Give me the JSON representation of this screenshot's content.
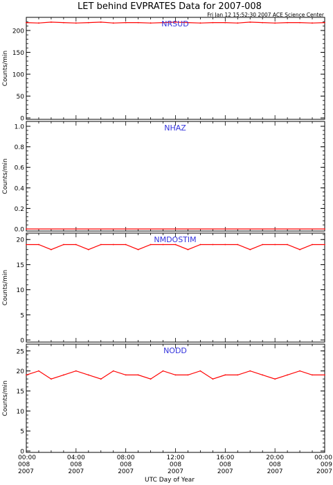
{
  "title": "LET behind EVPRATES Data for 2007-008",
  "timestamp": "Fri Jan 12 15:52:30 2007 ACE Science Center",
  "xlabel": "UTC Day of Year",
  "colors": {
    "trace": "#ff0000",
    "panel_label": "#3333dd",
    "axes": "#000000"
  },
  "x_ticks": [
    {
      "time": "00:00",
      "doy": "008",
      "year": "2007"
    },
    {
      "time": "04:00",
      "doy": "008",
      "year": "2007"
    },
    {
      "time": "08:00",
      "doy": "008",
      "year": "2007"
    },
    {
      "time": "12:00",
      "doy": "008",
      "year": "2007"
    },
    {
      "time": "16:00",
      "doy": "008",
      "year": "2007"
    },
    {
      "time": "20:00",
      "doy": "008",
      "year": "2007"
    },
    {
      "time": "00:00",
      "doy": "009",
      "year": "2007"
    }
  ],
  "chart_data": [
    {
      "type": "line",
      "label": "NRSUD",
      "ylabel": "Counts/min",
      "ylim": [
        0,
        230
      ],
      "yticks": [
        0,
        50,
        100,
        150,
        200
      ],
      "xlim": [
        "2007-008 00:00",
        "2007-009 00:00"
      ],
      "x_hours": [
        0,
        1,
        2,
        3,
        4,
        5,
        6,
        7,
        8,
        9,
        10,
        11,
        12,
        13,
        14,
        15,
        16,
        17,
        18,
        19,
        20,
        21,
        22,
        23,
        24
      ],
      "values": [
        218,
        217,
        219,
        218,
        217,
        218,
        219,
        217,
        218,
        218,
        217,
        218,
        219,
        218,
        217,
        218,
        218,
        217,
        219,
        218,
        217,
        218,
        218,
        217,
        218
      ]
    },
    {
      "type": "line",
      "label": "NHAZ",
      "ylabel": "Counts/min",
      "ylim": [
        0,
        1.0
      ],
      "yticks": [
        "0.0",
        "0.2",
        "0.4",
        "0.6",
        "0.8",
        "1.0"
      ],
      "xlim": [
        "2007-008 00:00",
        "2007-009 00:00"
      ],
      "x_hours": [
        0,
        24
      ],
      "values": [
        0,
        0
      ]
    },
    {
      "type": "line",
      "label": "NMDOSTIM",
      "ylabel": "Counts/min",
      "ylim": [
        0,
        21
      ],
      "yticks": [
        0,
        5,
        10,
        15,
        20
      ],
      "xlim": [
        "2007-008 00:00",
        "2007-009 00:00"
      ],
      "x_hours": [
        0,
        1,
        2,
        3,
        4,
        5,
        6,
        7,
        8,
        9,
        10,
        11,
        12,
        13,
        14,
        15,
        16,
        17,
        18,
        19,
        20,
        21,
        22,
        23,
        24
      ],
      "values": [
        19,
        19,
        18,
        19,
        19,
        18,
        19,
        19,
        19,
        18,
        19,
        19,
        19,
        18,
        19,
        19,
        19,
        19,
        18,
        19,
        19,
        19,
        18,
        19,
        19
      ]
    },
    {
      "type": "line",
      "label": "NODD",
      "ylabel": "Counts/min",
      "ylim": [
        0,
        26
      ],
      "yticks": [
        0,
        5,
        10,
        15,
        20,
        25
      ],
      "xlim": [
        "2007-008 00:00",
        "2007-009 00:00"
      ],
      "x_hours": [
        0,
        1,
        2,
        3,
        4,
        5,
        6,
        7,
        8,
        9,
        10,
        11,
        12,
        13,
        14,
        15,
        16,
        17,
        18,
        19,
        20,
        21,
        22,
        23,
        24
      ],
      "values": [
        19,
        20,
        18,
        19,
        20,
        19,
        18,
        20,
        19,
        19,
        18,
        20,
        19,
        19,
        20,
        18,
        19,
        19,
        20,
        19,
        18,
        19,
        20,
        19,
        19
      ]
    }
  ]
}
